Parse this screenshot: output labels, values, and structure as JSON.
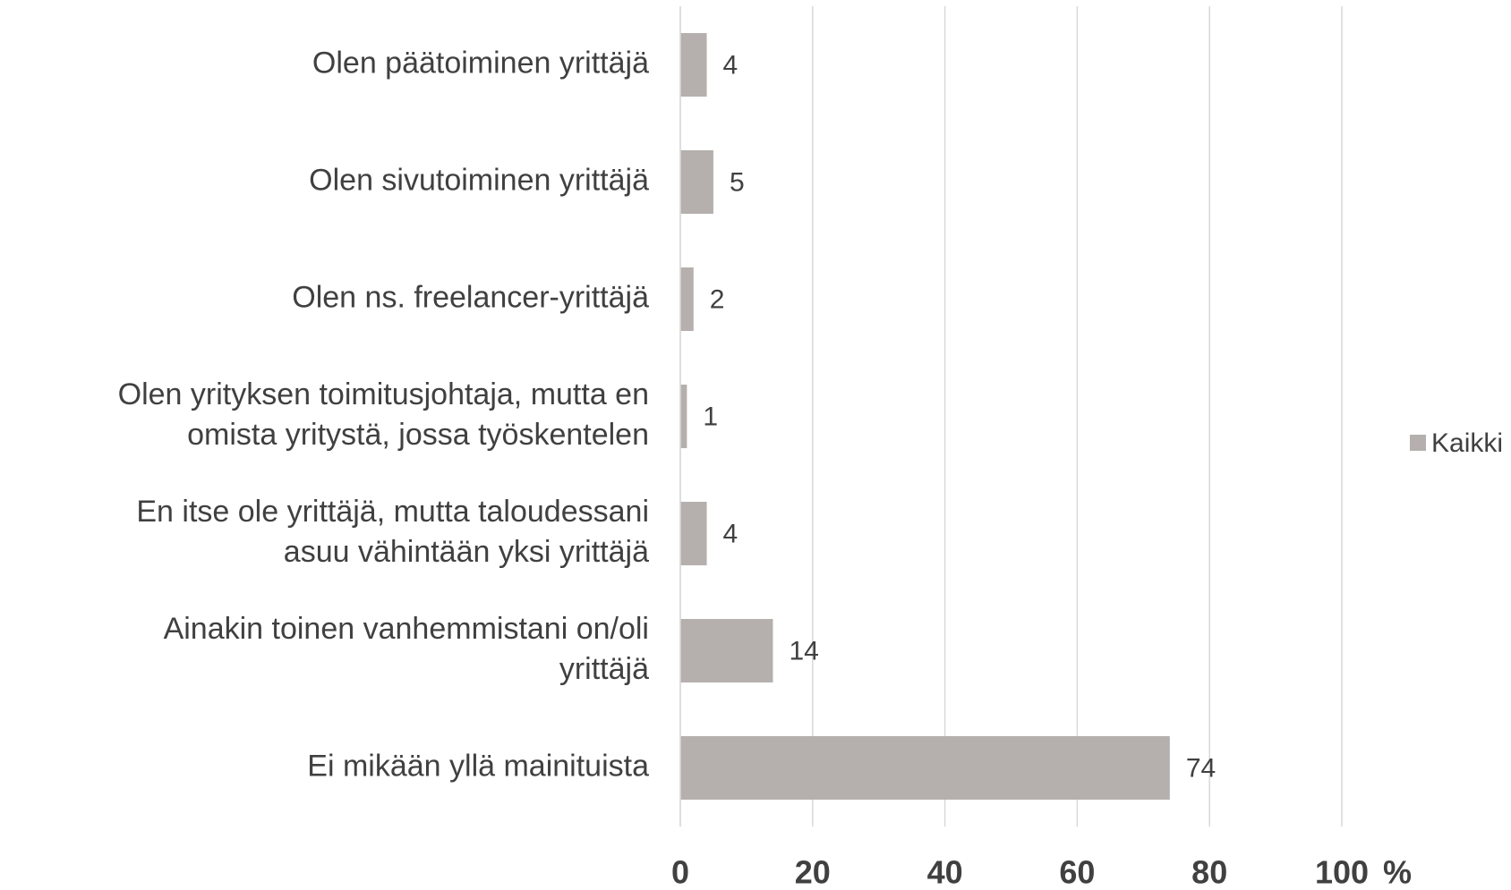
{
  "chart_data": {
    "type": "bar",
    "orientation": "horizontal",
    "categories": [
      [
        "Olen päätoiminen yrittäjä"
      ],
      [
        "Olen sivutoiminen yrittäjä"
      ],
      [
        "Olen ns. freelancer-yrittäjä"
      ],
      [
        "Olen yrityksen toimitusjohtaja, mutta en",
        "omista yritystä, jossa työskentelen"
      ],
      [
        "En itse ole yrittäjä, mutta taloudessani",
        "asuu vähintään yksi yrittäjä"
      ],
      [
        "Ainakin toinen vanhemmistani on/oli",
        "yrittäjä"
      ],
      [
        "Ei mikään yllä mainituista"
      ]
    ],
    "series": [
      {
        "name": "Kaikki",
        "color": "#b5b0ad",
        "values": [
          4,
          5,
          2,
          1,
          4,
          14,
          74
        ]
      }
    ],
    "xlim": [
      0,
      100
    ],
    "xticks": [
      0,
      20,
      40,
      60,
      80,
      100
    ],
    "x_label": "%",
    "grid": true,
    "legend": "right"
  }
}
